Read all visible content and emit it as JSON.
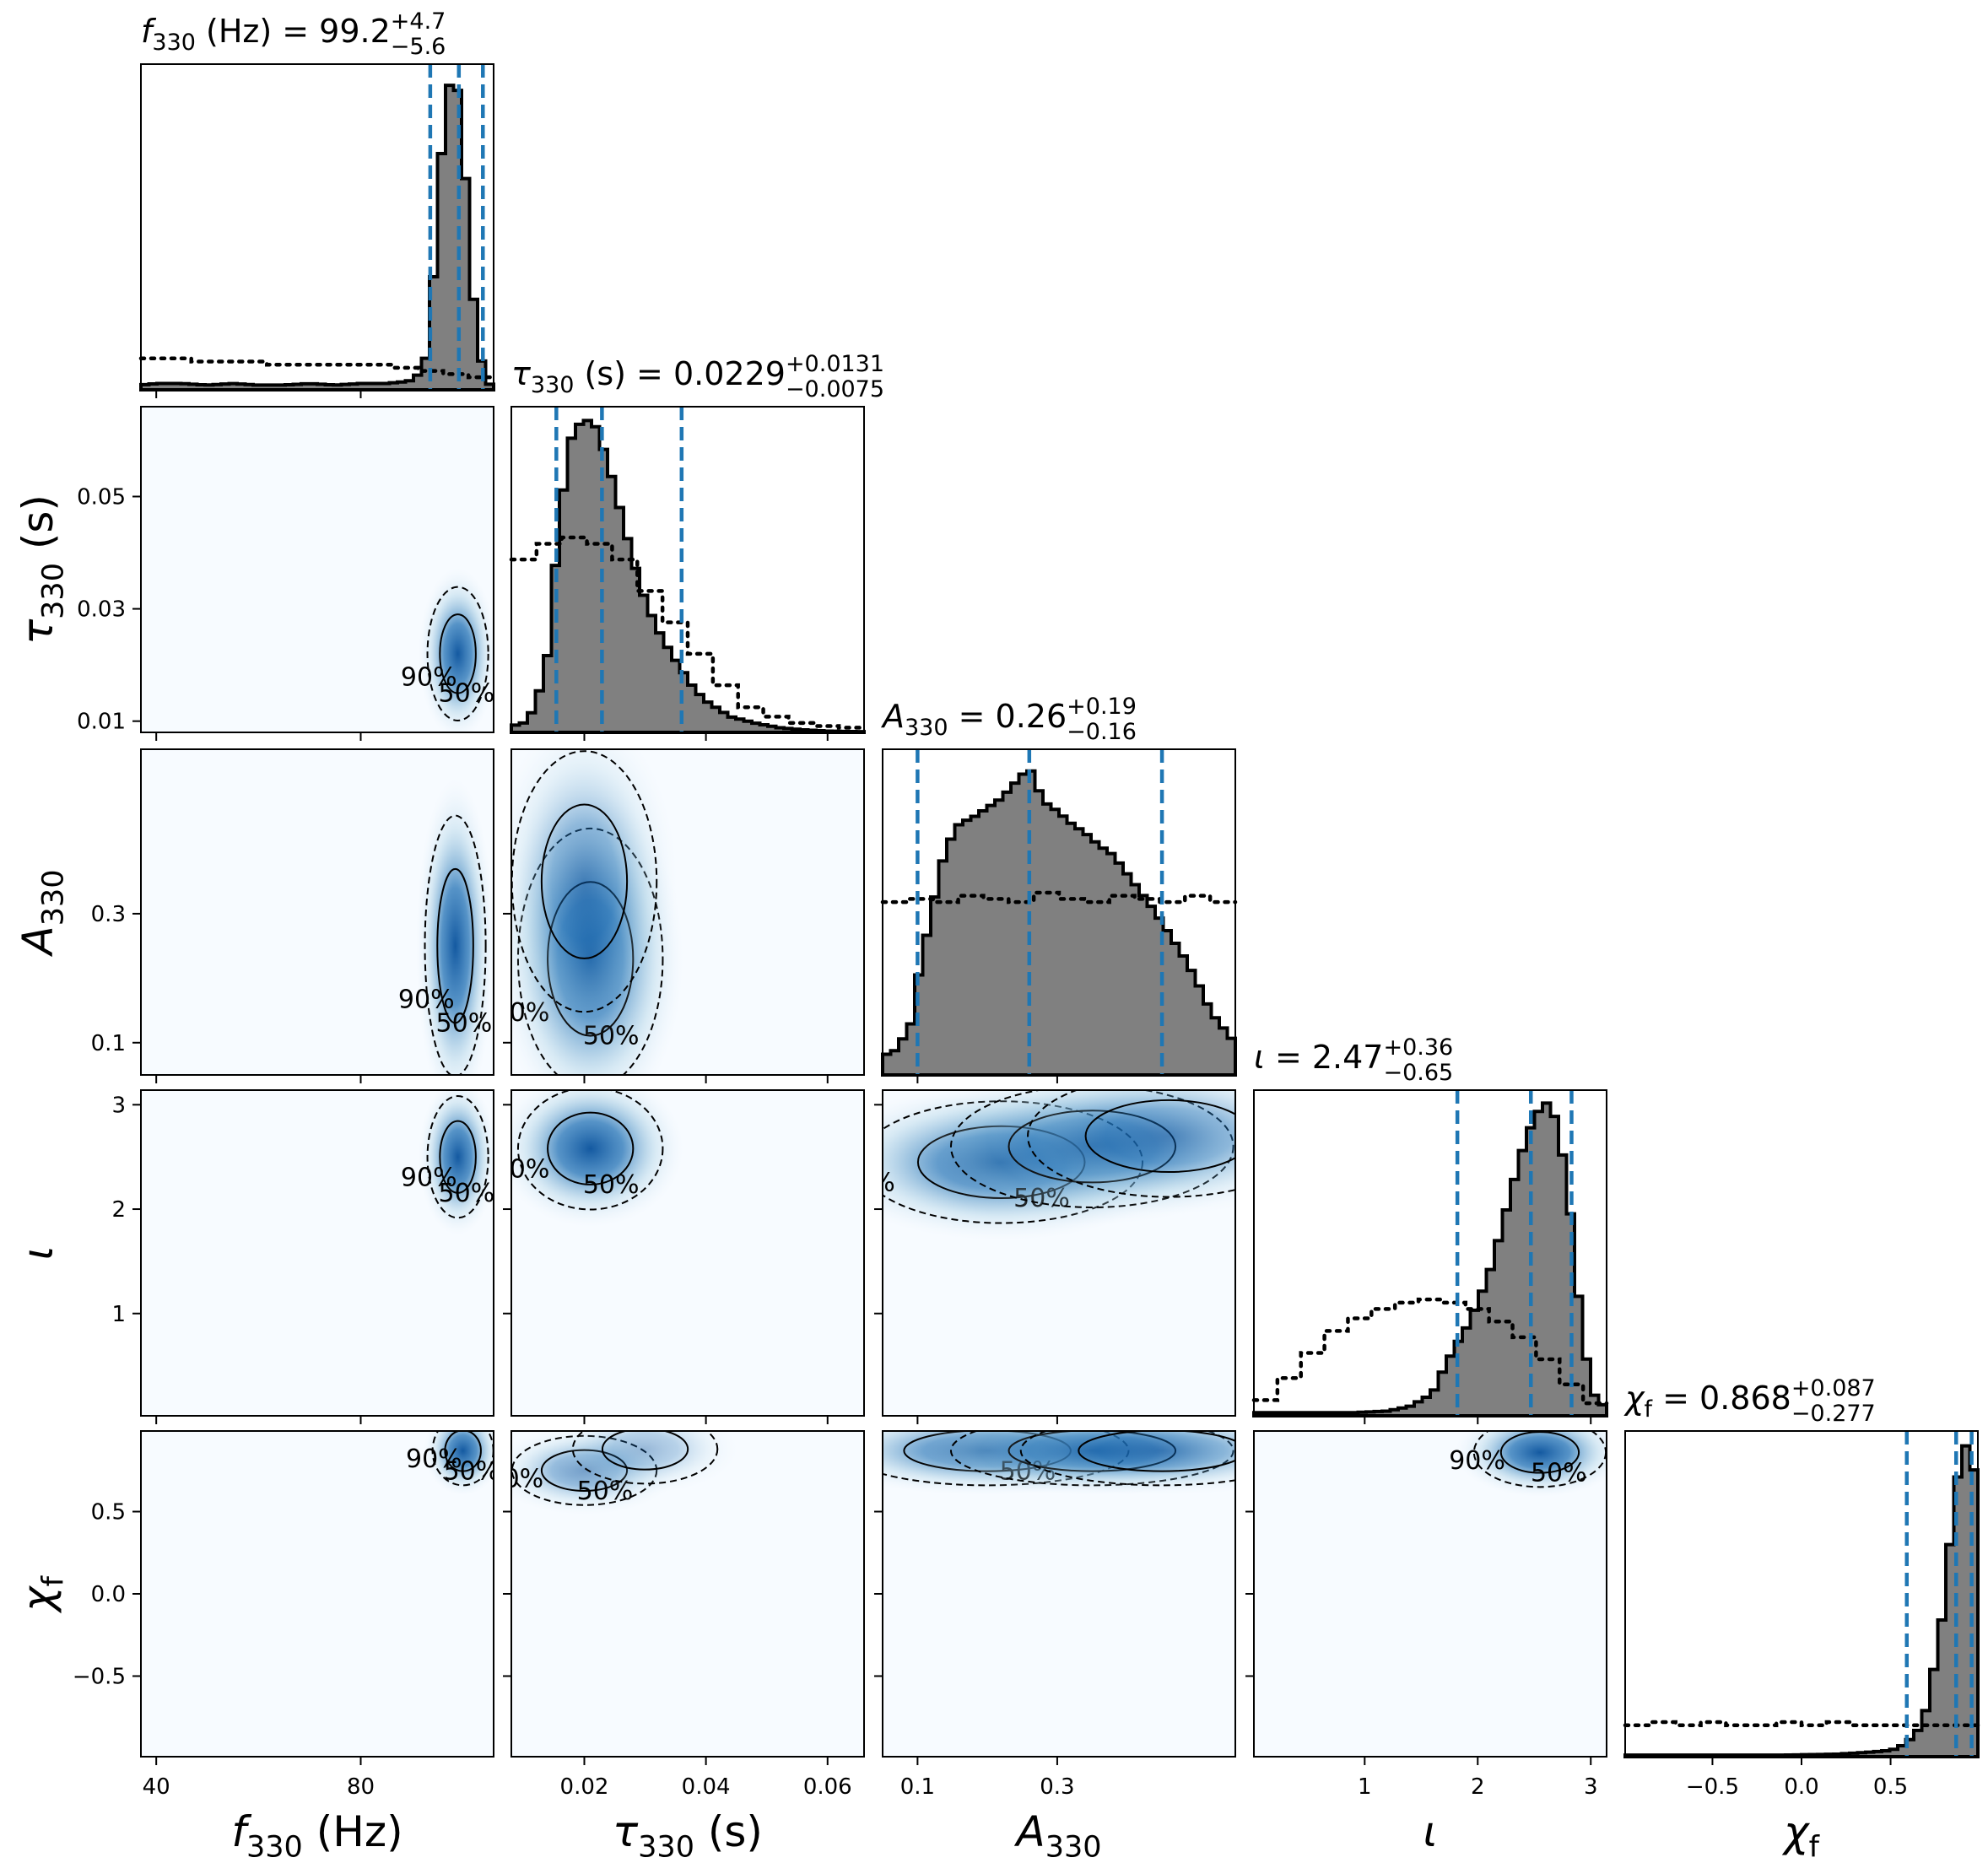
{
  "chart_data": {
    "type": "corner",
    "params": [
      {
        "key": "f",
        "axis_label": "f330 (Hz)",
        "range": [
          37,
          106
        ],
        "ticks": [
          40,
          80
        ],
        "tick_labels": [
          "40",
          "80"
        ],
        "summary": {
          "prefix": "f330 (Hz) = ",
          "median": "99.2",
          "plus": "+4.7",
          "minus": "−5.6"
        },
        "quantiles": [
          93.6,
          99.2,
          103.9
        ],
        "prior_level": 0.09
      },
      {
        "key": "tau",
        "axis_label": "τ330 (s)",
        "range": [
          0.008,
          0.066
        ],
        "ticks": [
          0.01,
          0.03,
          0.05
        ],
        "tick_labels": [
          "0.01",
          "0.03",
          "0.05"
        ],
        "x_ticks": [
          0.02,
          0.04,
          0.06
        ],
        "x_tick_labels": [
          "0.02",
          "0.04",
          "0.06"
        ],
        "summary": {
          "prefix": "τ330 (s) = ",
          "median": "0.0229",
          "plus": "+0.0131",
          "minus": "−0.0075"
        },
        "quantiles": [
          0.0154,
          0.0229,
          0.036
        ]
      },
      {
        "key": "A",
        "axis_label": "A330",
        "range": [
          0.05,
          0.555
        ],
        "ticks": [
          0.1,
          0.3
        ],
        "tick_labels": [
          "0.1",
          "0.3"
        ],
        "summary": {
          "prefix": "A330 = ",
          "median": "0.26",
          "plus": "+0.19",
          "minus": "−0.16"
        },
        "quantiles": [
          0.1,
          0.26,
          0.45
        ]
      },
      {
        "key": "iota",
        "axis_label": "ι",
        "range": [
          0.02,
          3.14
        ],
        "ticks": [
          1,
          2,
          3
        ],
        "tick_labels": [
          "1",
          "2",
          "3"
        ],
        "summary": {
          "prefix": "ι = ",
          "median": "2.47",
          "plus": "+0.36",
          "minus": "−0.65"
        },
        "quantiles": [
          1.82,
          2.47,
          2.83
        ]
      },
      {
        "key": "chi",
        "axis_label": "χf",
        "range": [
          -0.99,
          0.99
        ],
        "ticks": [
          -0.5,
          0.0,
          0.5
        ],
        "tick_labels": [
          "−0.5",
          "0.0",
          "0.5"
        ],
        "summary": {
          "prefix": "χf = ",
          "median": "0.868",
          "plus": "+0.087",
          "minus": "−0.277"
        },
        "quantiles": [
          0.591,
          0.868,
          0.955
        ]
      }
    ],
    "posterior_hist": {
      "f": {
        "x": [
          37,
          40,
          45,
          50,
          55,
          60,
          65,
          70,
          75,
          80,
          85,
          88,
          90,
          92,
          93,
          94,
          95,
          96,
          97,
          98,
          99,
          100,
          101,
          102,
          103,
          104,
          105,
          106
        ],
        "y": [
          0.015,
          0.02,
          0.02,
          0.015,
          0.02,
          0.015,
          0.015,
          0.02,
          0.015,
          0.02,
          0.02,
          0.025,
          0.03,
          0.06,
          0.12,
          0.3,
          0.55,
          0.8,
          0.95,
          1.0,
          0.95,
          0.8,
          0.55,
          0.3,
          0.15,
          0.06,
          0.02,
          0.01
        ]
      },
      "tau": {
        "x": [
          0.008,
          0.01,
          0.012,
          0.014,
          0.016,
          0.018,
          0.02,
          0.022,
          0.024,
          0.026,
          0.028,
          0.03,
          0.032,
          0.034,
          0.036,
          0.038,
          0.04,
          0.044,
          0.048,
          0.052,
          0.056,
          0.06,
          0.066
        ],
        "y": [
          0.02,
          0.03,
          0.08,
          0.25,
          0.7,
          0.95,
          1.0,
          0.97,
          0.85,
          0.7,
          0.55,
          0.42,
          0.33,
          0.26,
          0.2,
          0.14,
          0.1,
          0.05,
          0.03,
          0.015,
          0.008,
          0.004,
          0.002
        ]
      },
      "A": {
        "x": [
          0.05,
          0.07,
          0.09,
          0.1,
          0.12,
          0.14,
          0.16,
          0.18,
          0.2,
          0.22,
          0.24,
          0.26,
          0.28,
          0.3,
          0.32,
          0.34,
          0.36,
          0.38,
          0.4,
          0.42,
          0.44,
          0.46,
          0.48,
          0.5,
          0.52,
          0.555
        ],
        "y": [
          0.06,
          0.08,
          0.16,
          0.3,
          0.52,
          0.72,
          0.8,
          0.82,
          0.85,
          0.88,
          0.93,
          0.98,
          0.87,
          0.84,
          0.8,
          0.77,
          0.73,
          0.7,
          0.64,
          0.58,
          0.52,
          0.45,
          0.38,
          0.3,
          0.2,
          0.1
        ]
      },
      "iota": {
        "x": [
          0.02,
          0.3,
          0.6,
          0.9,
          1.2,
          1.4,
          1.6,
          1.7,
          1.8,
          1.9,
          2.0,
          2.1,
          2.2,
          2.3,
          2.4,
          2.5,
          2.6,
          2.7,
          2.8,
          2.9,
          3.0,
          3.14
        ],
        "y": [
          0.01,
          0.01,
          0.01,
          0.01,
          0.015,
          0.03,
          0.07,
          0.15,
          0.22,
          0.28,
          0.36,
          0.45,
          0.58,
          0.72,
          0.85,
          0.95,
          1.0,
          0.94,
          0.72,
          0.35,
          0.08,
          0.02
        ]
      },
      "chi": {
        "x": [
          -0.99,
          -0.7,
          -0.4,
          -0.1,
          0.2,
          0.4,
          0.5,
          0.55,
          0.6,
          0.65,
          0.7,
          0.75,
          0.8,
          0.85,
          0.9,
          0.95,
          0.99
        ],
        "y": [
          0.005,
          0.005,
          0.005,
          0.005,
          0.008,
          0.015,
          0.02,
          0.03,
          0.05,
          0.08,
          0.15,
          0.3,
          0.48,
          0.78,
          0.98,
          1.0,
          0.8
        ]
      }
    },
    "prior_hist": {
      "f": [
        0.1,
        0.1,
        0.09,
        0.09,
        0.09,
        0.08,
        0.08,
        0.08,
        0.08,
        0.08,
        0.07,
        0.06,
        0.05,
        0.04
      ],
      "tau": [
        0.55,
        0.6,
        0.62,
        0.6,
        0.55,
        0.45,
        0.35,
        0.25,
        0.15,
        0.08,
        0.05,
        0.03,
        0.02,
        0.015
      ],
      "A": [
        0.55,
        0.56,
        0.55,
        0.57,
        0.56,
        0.55,
        0.58,
        0.56,
        0.55,
        0.57,
        0.56,
        0.55,
        0.57,
        0.55
      ],
      "iota": [
        0.05,
        0.12,
        0.2,
        0.27,
        0.31,
        0.34,
        0.36,
        0.37,
        0.36,
        0.34,
        0.3,
        0.25,
        0.18,
        0.1,
        0.04
      ],
      "chi": [
        0.1,
        0.11,
        0.1,
        0.11,
        0.1,
        0.1,
        0.11,
        0.1,
        0.11,
        0.1,
        0.1,
        0.1,
        0.1,
        0.1
      ]
    },
    "density_peaks": {
      "f|tau": [
        [
          99.0,
          0.022,
          1.0
        ]
      ],
      "f|A": [
        [
          98.5,
          0.25,
          1.0
        ]
      ],
      "f|iota": [
        [
          99.0,
          2.5,
          1.0
        ]
      ],
      "f|chi": [
        [
          100.0,
          0.87,
          1.0
        ]
      ],
      "tau|A": [
        [
          0.021,
          0.23,
          1.0
        ],
        [
          0.02,
          0.35,
          0.6
        ]
      ],
      "tau|iota": [
        [
          0.021,
          2.58,
          1.0
        ]
      ],
      "tau|chi": [
        [
          0.02,
          0.75,
          0.6
        ],
        [
          0.03,
          0.88,
          0.4
        ]
      ],
      "A|iota": [
        [
          0.22,
          2.45,
          1.0
        ],
        [
          0.35,
          2.6,
          0.8
        ],
        [
          0.46,
          2.7,
          0.6
        ]
      ],
      "A|chi": [
        [
          0.2,
          0.87,
          0.9
        ],
        [
          0.35,
          0.87,
          0.9
        ],
        [
          0.45,
          0.87,
          0.6
        ]
      ],
      "iota|chi": [
        [
          2.55,
          0.86,
          1.0
        ]
      ]
    },
    "contour_labels": [
      "50%",
      "90%"
    ],
    "colors": {
      "posterior_fill": "#808080",
      "quantile_line": "#1f77b4",
      "density": "#08519c",
      "density_bg": "#f7fbff"
    }
  }
}
